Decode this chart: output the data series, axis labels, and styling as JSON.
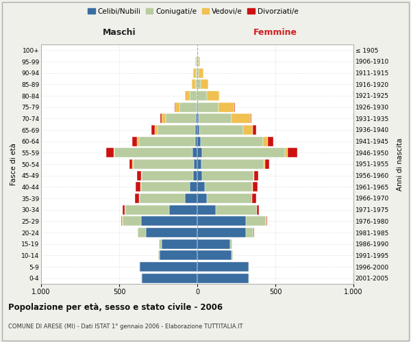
{
  "age_groups": [
    "0-4",
    "5-9",
    "10-14",
    "15-19",
    "20-24",
    "25-29",
    "30-34",
    "35-39",
    "40-44",
    "45-49",
    "50-54",
    "55-59",
    "60-64",
    "65-69",
    "70-74",
    "75-79",
    "80-84",
    "85-89",
    "90-94",
    "95-99",
    "100+"
  ],
  "birth_years": [
    "2001-2005",
    "1996-2000",
    "1991-1995",
    "1986-1990",
    "1981-1985",
    "1976-1980",
    "1971-1975",
    "1966-1970",
    "1961-1965",
    "1956-1960",
    "1951-1955",
    "1946-1950",
    "1941-1945",
    "1936-1940",
    "1931-1935",
    "1926-1930",
    "1921-1925",
    "1916-1920",
    "1911-1915",
    "1906-1910",
    "≤ 1905"
  ],
  "maschi": {
    "celibi": [
      355,
      370,
      240,
      230,
      330,
      360,
      180,
      80,
      50,
      25,
      20,
      30,
      15,
      15,
      10,
      5,
      0,
      0,
      0,
      2,
      0
    ],
    "coniugati": [
      3,
      5,
      10,
      15,
      50,
      120,
      280,
      290,
      310,
      330,
      390,
      500,
      360,
      240,
      190,
      110,
      50,
      15,
      10,
      5,
      0
    ],
    "vedovi": [
      0,
      0,
      0,
      0,
      0,
      2,
      3,
      3,
      5,
      5,
      5,
      5,
      10,
      15,
      30,
      25,
      30,
      20,
      15,
      5,
      0
    ],
    "divorziati": [
      0,
      0,
      0,
      0,
      2,
      5,
      15,
      25,
      30,
      25,
      20,
      50,
      30,
      25,
      5,
      5,
      0,
      0,
      0,
      0,
      0
    ]
  },
  "femmine": {
    "nubili": [
      330,
      330,
      220,
      210,
      310,
      310,
      120,
      60,
      50,
      30,
      25,
      30,
      20,
      15,
      10,
      5,
      0,
      0,
      0,
      2,
      0
    ],
    "coniugate": [
      3,
      5,
      10,
      15,
      50,
      130,
      260,
      290,
      300,
      330,
      400,
      530,
      400,
      280,
      210,
      130,
      60,
      20,
      10,
      5,
      0
    ],
    "vedove": [
      0,
      0,
      0,
      0,
      0,
      2,
      3,
      3,
      5,
      5,
      10,
      20,
      30,
      60,
      120,
      100,
      80,
      50,
      30,
      10,
      0
    ],
    "divorziate": [
      0,
      0,
      0,
      0,
      2,
      5,
      10,
      25,
      30,
      25,
      25,
      60,
      35,
      20,
      5,
      5,
      0,
      0,
      0,
      0,
      0
    ]
  },
  "colors": {
    "celibi": "#3a6da0",
    "coniugati": "#b8cca0",
    "vedovi": "#f0c050",
    "divorziati": "#cc1111"
  },
  "title": "Popolazione per età, sesso e stato civile - 2006",
  "subtitle": "COMUNE DI ARESE (MI) - Dati ISTAT 1° gennaio 2006 - Elaborazione TUTTITALIA.IT",
  "xlabel_left": "Maschi",
  "xlabel_right": "Femmine",
  "ylabel_left": "Fasce di età",
  "ylabel_right": "Anni di nascita",
  "xlim": 1000,
  "legend_labels": [
    "Celibi/Nubili",
    "Coniugati/e",
    "Vedovi/e",
    "Divorziati/e"
  ],
  "bg_color": "#f0f0eb",
  "plot_bg_color": "#ffffff"
}
